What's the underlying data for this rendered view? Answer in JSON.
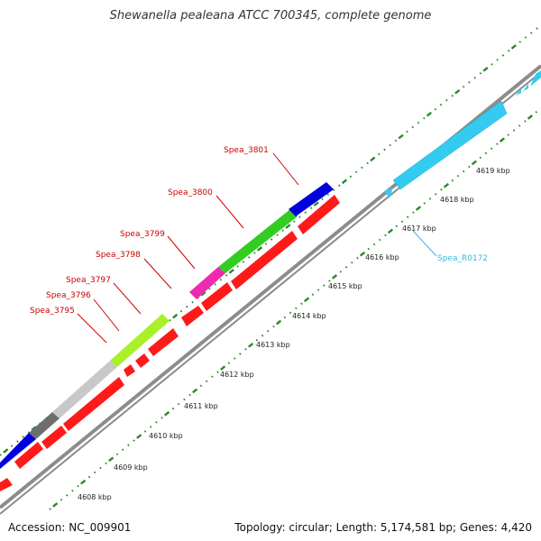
{
  "title": "Shewanella pealeana ATCC 700345, complete genome",
  "footer": {
    "accession": "Accession: NC_009901",
    "summary": "Topology: circular; Length: 5,174,581 bp; Genes: 4,420"
  },
  "colors": {
    "backbone": "#8c8c8c",
    "gene_red": "#ff1a1a",
    "tick_green": "#2a8a2a",
    "label_red": "#cc0000",
    "label_cyan": "#33bbdd",
    "feature_cyan": "#33ccf0"
  },
  "scale_labels": [
    "4608 kbp",
    "4609 kbp",
    "4610 kbp",
    "4611 kbp",
    "4612 kbp",
    "4613 kbp",
    "4614 kbp",
    "4615 kbp",
    "4616 kbp",
    "4617 kbp",
    "4618 kbp",
    "4619 kbp"
  ],
  "gene_labels": [
    "Spea_3795",
    "Spea_3796",
    "Spea_3797",
    "Spea_3798",
    "Spea_3799",
    "Spea_3800",
    "Spea_3801",
    "Spea_R0172"
  ]
}
